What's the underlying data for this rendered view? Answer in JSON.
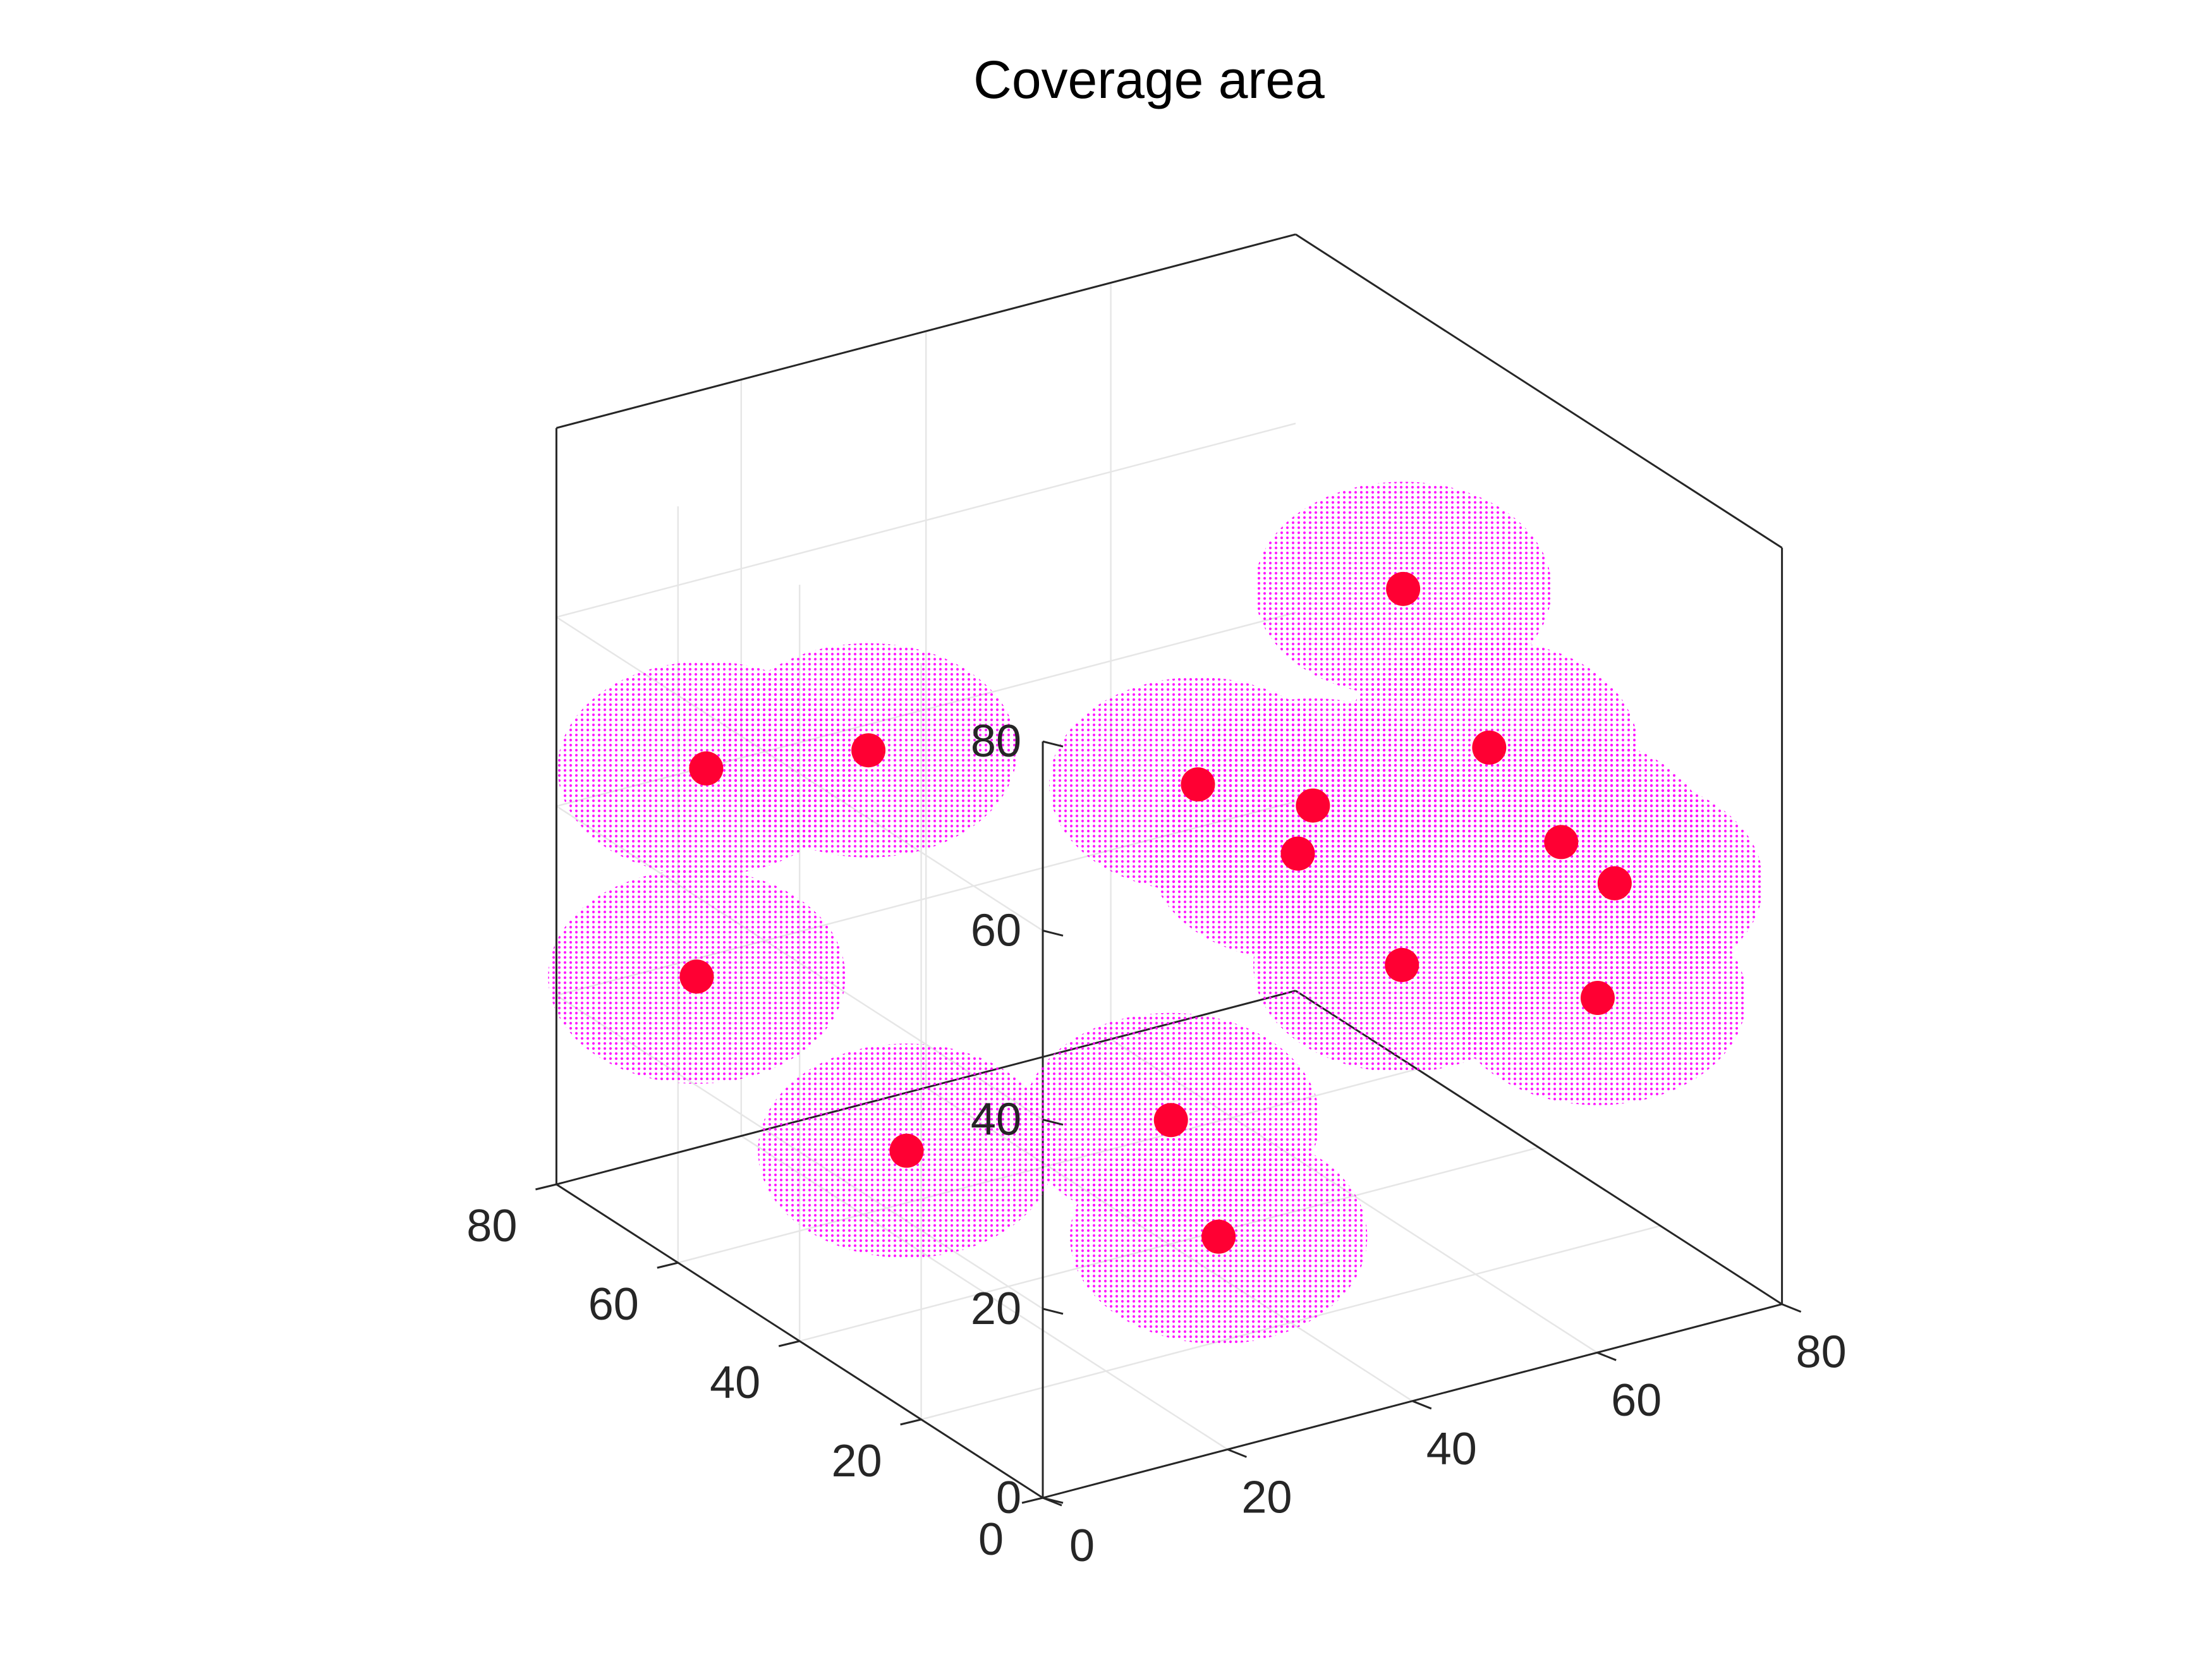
{
  "chart_data": {
    "type": "scatter",
    "projection": "3d",
    "title": "Coverage area",
    "xlabel": "",
    "ylabel": "",
    "zlabel": "",
    "xlim": [
      0,
      80
    ],
    "ylim": [
      0,
      80
    ],
    "zlim": [
      0,
      80
    ],
    "xticks": [
      "0",
      "20",
      "40",
      "60",
      "80"
    ],
    "yticks": [
      "0",
      "20",
      "40",
      "60",
      "80"
    ],
    "zticks": [
      "0",
      "20",
      "40",
      "60",
      "80"
    ],
    "grid": true,
    "legend": "none",
    "coverage_radius": 16,
    "colors": {
      "axes": "#262626",
      "grid": "#e6e6e6",
      "coverage": "#ff00ff",
      "node": "#ff0033",
      "title": "#000000"
    },
    "series": [
      {
        "marker": "filled-circle",
        "points": [
          [
            26,
            14,
            63
          ],
          [
            64,
            38,
            64
          ],
          [
            47,
            27,
            50
          ],
          [
            16,
            53,
            53
          ],
          [
            7,
            66,
            48
          ],
          [
            48,
            31,
            43
          ],
          [
            72,
            36,
            46
          ],
          [
            64,
            12,
            48
          ],
          [
            54,
            23,
            33
          ],
          [
            4,
            63,
            28
          ],
          [
            29,
            23,
            23
          ],
          [
            79,
            26,
            34
          ],
          [
            64,
            6,
            34
          ],
          [
            5,
            30,
            23
          ],
          [
            21,
            3,
            21
          ]
        ]
      }
    ]
  }
}
